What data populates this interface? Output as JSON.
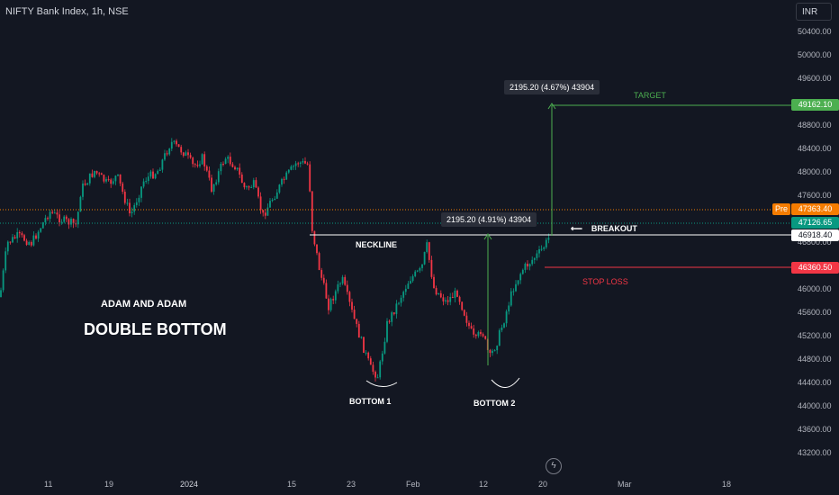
{
  "header": {
    "symbol_title": "NIFTY Bank Index, 1h, NSE",
    "currency": "INR"
  },
  "annotations": {
    "neckline": "NECKLINE",
    "bottom1": "BOTTOM 1",
    "bottom2": "BOTTOM 2",
    "breakout": "BREAKOUT",
    "breakout_arrow": "⟵",
    "target": "TARGET",
    "stop_loss": "STOP LOSS",
    "author": "ADAM AND ADAM",
    "pattern": "DOUBLE BOTTOM",
    "measure_target": "2195.20 (4.67%) 43904",
    "measure_neck": "2195.20 (4.91%) 43904"
  },
  "price_labels": {
    "target": "49162.10",
    "pre": "47363.40",
    "pre_tag": "Pre",
    "last": "47126.65",
    "neckline": "46918.40",
    "stop": "46360.50"
  },
  "colors": {
    "background": "#131722",
    "up": "#089981",
    "down": "#f23645",
    "target": "#4caf50",
    "pre": "#f57c00"
  },
  "icons": {
    "replay": "lightning-bolt-icon"
  },
  "chart_data": {
    "type": "candlestick",
    "title": "NIFTY Bank Index, 1h, NSE",
    "ylim": [
      43000,
      50600
    ],
    "y_ticks": [
      "50400.00",
      "50000.00",
      "49600.00",
      "48800.00",
      "48400.00",
      "48000.00",
      "47600.00",
      "46800.00",
      "46000.00",
      "45600.00",
      "45200.00",
      "44800.00",
      "44400.00",
      "44000.00",
      "43600.00",
      "43200.00"
    ],
    "x_ticks": [
      "11",
      "19",
      "2024",
      "15",
      "23",
      "Feb",
      "12",
      "20",
      "Mar",
      "18"
    ],
    "levels": {
      "target": 49162.1,
      "previous_close": 47363.4,
      "last": 47126.65,
      "neckline": 46918.4,
      "stop_loss": 46360.5
    },
    "measure_move": {
      "points": 2195.2,
      "pct_target": 4.67,
      "pct_neck": 4.91,
      "volume": 43904
    },
    "grid": false,
    "legend": "none"
  }
}
